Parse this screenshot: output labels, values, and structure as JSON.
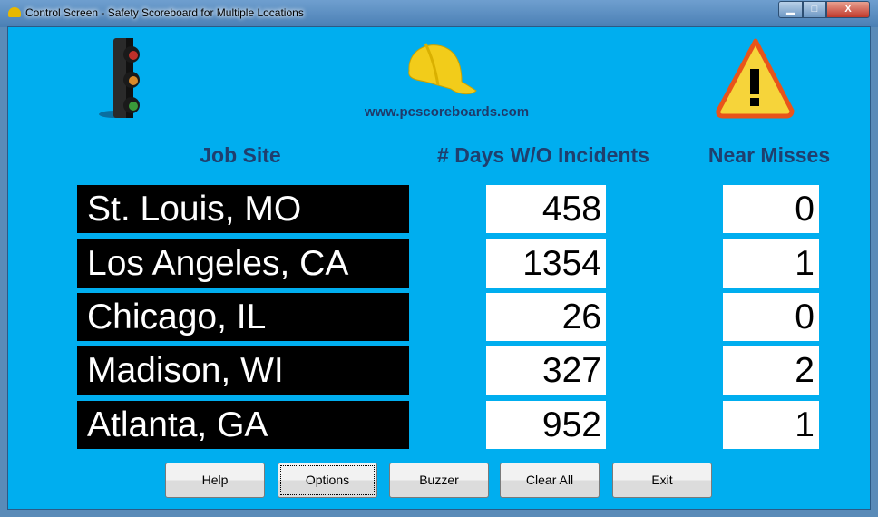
{
  "window": {
    "title": "Control Screen - Safety Scoreboard for Multiple Locations"
  },
  "header": {
    "url": "www.pcscoreboards.com",
    "icons": [
      "traffic-light-icon",
      "hard-hat-icon",
      "warning-icon"
    ]
  },
  "columns": {
    "site": "Job Site",
    "days": "# Days W/O Incidents",
    "near": "Near Misses"
  },
  "rows": [
    {
      "site": "St. Louis, MO",
      "days": "458",
      "near": "0"
    },
    {
      "site": "Los Angeles, CA",
      "days": "1354",
      "near": "1"
    },
    {
      "site": "Chicago, IL",
      "days": "26",
      "near": "0"
    },
    {
      "site": "Madison, WI",
      "days": "327",
      "near": "2"
    },
    {
      "site": "Atlanta, GA",
      "days": "952",
      "near": "1"
    }
  ],
  "buttons": {
    "help": "Help",
    "options": "Options",
    "buzzer": "Buzzer",
    "clear": "Clear All",
    "exit": "Exit"
  },
  "colors": {
    "background": "#00aeef",
    "header_text": "#1f3f6e"
  }
}
